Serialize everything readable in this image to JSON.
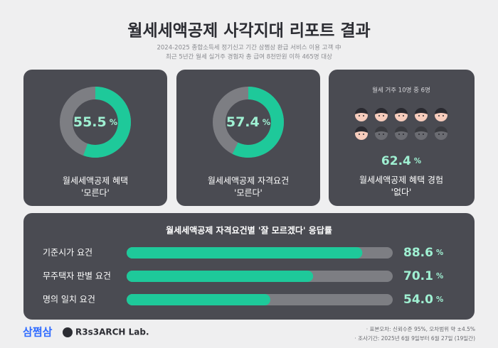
{
  "header": {
    "title": "월세세액공제 사각지대 리포트 결과",
    "subtitle": [
      "2024-2025 종합소득세 정기신고 기간 삼쩜삼 환급 서비스 이용 고객 中",
      "최근 5년간 월세 실거주 경험자 총 급여 8천만원 이하 465명 대상"
    ]
  },
  "chart_data": [
    {
      "type": "donut",
      "values": [
        55.5
      ],
      "unit": "%",
      "ylim": [
        0,
        100
      ],
      "color": "#1ec99a",
      "track_color": "#7d7e83",
      "label": [
        "월세세액공제 혜택",
        "'모른다'"
      ]
    },
    {
      "type": "donut",
      "values": [
        57.4
      ],
      "unit": "%",
      "ylim": [
        0,
        100
      ],
      "color": "#1ec99a",
      "track_color": "#7d7e83",
      "label": [
        "월세세액공제 자격요건",
        "'모른다'"
      ]
    },
    {
      "type": "pictogram",
      "caption": "월세 거주 10명 중 6명",
      "icon_total": 10,
      "icon_filled": 6,
      "values": [
        62.4
      ],
      "unit": "%",
      "label": [
        "월세세액공제 혜택 경험",
        "'없다'"
      ]
    },
    {
      "type": "bar",
      "title": "월세세액공제 자격요건별 '잘 모르겠다' 응답률",
      "categories": [
        "기준시가 요건",
        "무주택자 판별 요건",
        "명의 일치 요건"
      ],
      "values": [
        88.6,
        70.1,
        54.0
      ],
      "value_labels": [
        "88.6",
        "70.1",
        "54.0"
      ],
      "unit": "%",
      "xlim": [
        0,
        100
      ],
      "color": "#1ec99a",
      "track_color": "#7d7e83"
    }
  ],
  "footer": {
    "logos": [
      "삼쩜삼",
      "R3s3ARCH Lab."
    ],
    "notes": [
      "· 표본오차: 신뢰수준 95%, 오차범위 약 ±4.5%",
      "· 조사기간: 2025년 6월 9일부터 6월 27일 (19일간)"
    ]
  }
}
